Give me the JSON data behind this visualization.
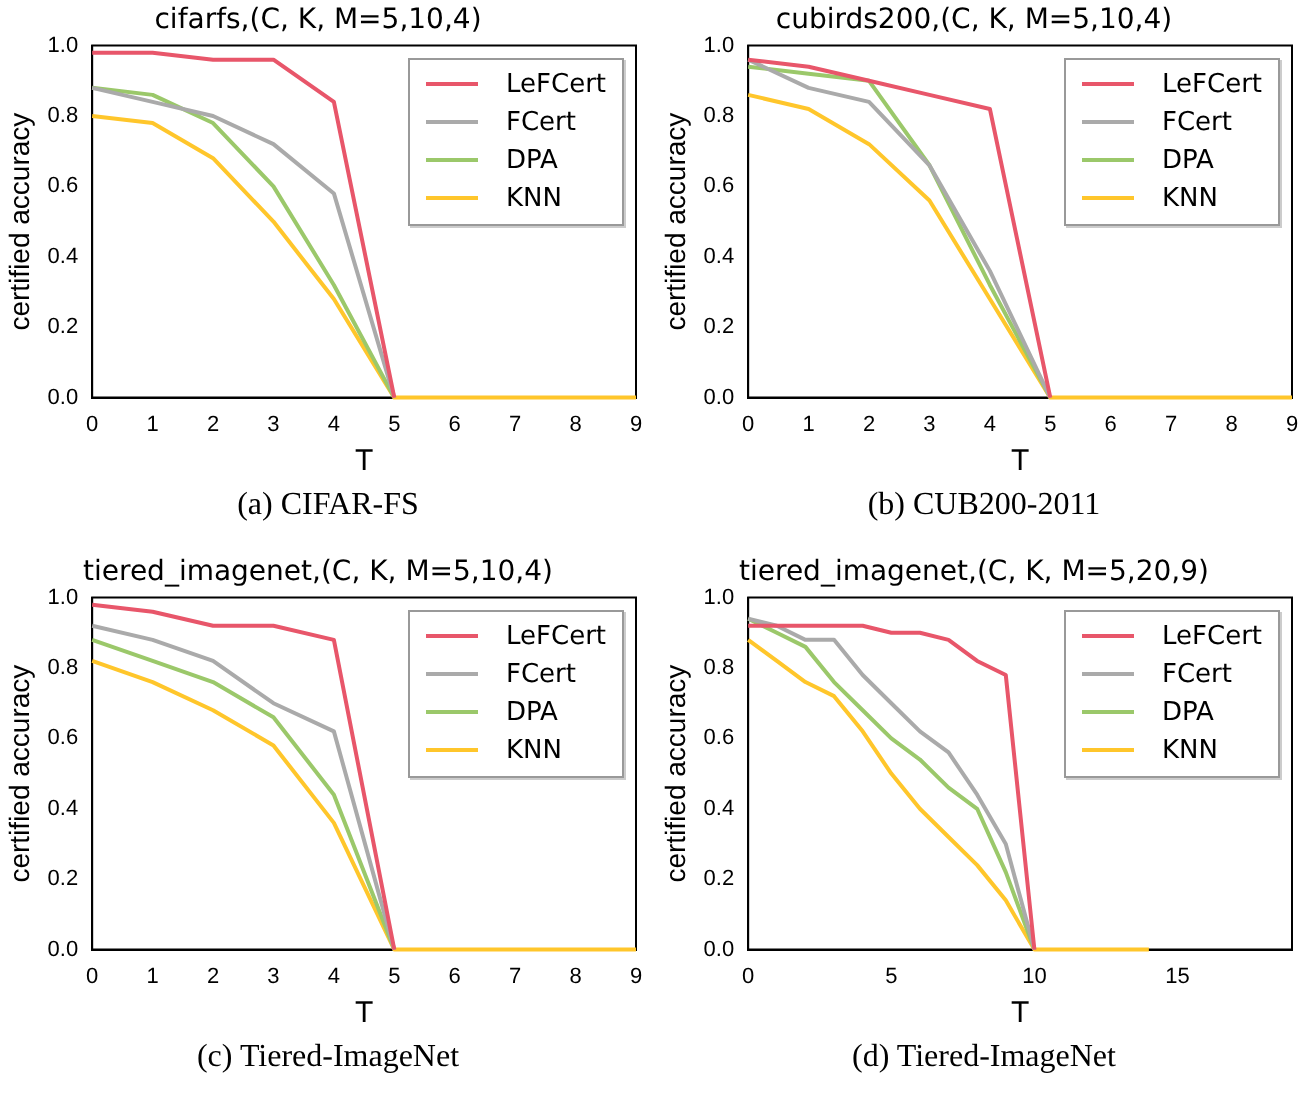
{
  "chart_data": [
    {
      "type": "line",
      "title": "cifarfs,(C, K, M=5,10,4)",
      "xlabel": "T",
      "ylabel": "certified accuracy",
      "annotations": [
        "(a)  CIFAR-FS"
      ],
      "legend": "top right",
      "x": [
        0,
        1,
        2,
        3,
        4,
        5,
        6,
        7,
        8,
        9
      ],
      "xlim": [
        0,
        9
      ],
      "xticks": [
        0,
        1,
        2,
        3,
        4,
        5,
        6,
        7,
        8,
        9
      ],
      "ylim": [
        0,
        1
      ],
      "yticks": [
        {
          "value": 0,
          "label": "0.0"
        },
        {
          "value": 0.2,
          "label": "0.2"
        },
        {
          "value": 0.4,
          "label": "0.4"
        },
        {
          "value": 0.6,
          "label": "0.6"
        },
        {
          "value": 0.8,
          "label": "0.8"
        },
        {
          "value": 1,
          "label": "1.0"
        }
      ],
      "series": [
        {
          "name": "LeFCert",
          "color": "#e8566a",
          "values": [
            0.98,
            0.98,
            0.96,
            0.96,
            0.84,
            0,
            null,
            null,
            null,
            null
          ]
        },
        {
          "name": "FCert",
          "color": "#aaaaaa",
          "values": [
            0.88,
            0.84,
            0.8,
            0.72,
            0.58,
            0,
            null,
            null,
            null,
            null
          ]
        },
        {
          "name": "DPA",
          "color": "#9bc86a",
          "values": [
            0.88,
            0.86,
            0.78,
            0.6,
            0.32,
            0,
            null,
            null,
            null,
            null
          ]
        },
        {
          "name": "KNN",
          "color": "#ffc62b",
          "values": [
            0.8,
            0.78,
            0.68,
            0.5,
            0.28,
            0,
            0,
            0,
            0,
            0
          ]
        }
      ]
    },
    {
      "type": "line",
      "title": "cubirds200,(C, K, M=5,10,4)",
      "xlabel": "T",
      "ylabel": "certified accuracy",
      "annotations": [
        "(b)  CUB200-2011"
      ],
      "legend": "top right",
      "x": [
        0,
        1,
        2,
        3,
        4,
        5,
        6,
        7,
        8,
        9
      ],
      "xlim": [
        0,
        9
      ],
      "xticks": [
        0,
        1,
        2,
        3,
        4,
        5,
        6,
        7,
        8,
        9
      ],
      "ylim": [
        0,
        1
      ],
      "yticks": [
        {
          "value": 0,
          "label": "0.0"
        },
        {
          "value": 0.2,
          "label": "0.2"
        },
        {
          "value": 0.4,
          "label": "0.4"
        },
        {
          "value": 0.6,
          "label": "0.6"
        },
        {
          "value": 0.8,
          "label": "0.8"
        },
        {
          "value": 1,
          "label": "1.0"
        }
      ],
      "series": [
        {
          "name": "LeFCert",
          "color": "#e8566a",
          "values": [
            0.96,
            0.94,
            0.9,
            0.86,
            0.82,
            0,
            null,
            null,
            null,
            null
          ]
        },
        {
          "name": "FCert",
          "color": "#aaaaaa",
          "values": [
            0.96,
            0.88,
            0.84,
            0.66,
            0.36,
            0,
            null,
            null,
            null,
            null
          ]
        },
        {
          "name": "DPA",
          "color": "#9bc86a",
          "values": [
            0.94,
            0.92,
            0.9,
            0.66,
            0.32,
            0,
            null,
            null,
            null,
            null
          ]
        },
        {
          "name": "KNN",
          "color": "#ffc62b",
          "values": [
            0.86,
            0.82,
            0.72,
            0.56,
            0.28,
            0,
            0,
            0,
            0,
            0
          ]
        }
      ]
    },
    {
      "type": "line",
      "title": "tiered_imagenet,(C, K, M=5,10,4)",
      "xlabel": "T",
      "ylabel": "certified accuracy",
      "annotations": [
        "(c)  Tiered-ImageNet"
      ],
      "legend": "top right",
      "x": [
        0,
        1,
        2,
        3,
        4,
        5,
        6,
        7,
        8,
        9
      ],
      "xlim": [
        0,
        9
      ],
      "xticks": [
        0,
        1,
        2,
        3,
        4,
        5,
        6,
        7,
        8,
        9
      ],
      "ylim": [
        0,
        1
      ],
      "yticks": [
        {
          "value": 0,
          "label": "0.0"
        },
        {
          "value": 0.2,
          "label": "0.2"
        },
        {
          "value": 0.4,
          "label": "0.4"
        },
        {
          "value": 0.6,
          "label": "0.6"
        },
        {
          "value": 0.8,
          "label": "0.8"
        },
        {
          "value": 1,
          "label": "1.0"
        }
      ],
      "series": [
        {
          "name": "LeFCert",
          "color": "#e8566a",
          "values": [
            0.98,
            0.96,
            0.92,
            0.92,
            0.88,
            0,
            null,
            null,
            null,
            null
          ]
        },
        {
          "name": "FCert",
          "color": "#aaaaaa",
          "values": [
            0.92,
            0.88,
            0.82,
            0.7,
            0.62,
            0,
            null,
            null,
            null,
            null
          ]
        },
        {
          "name": "DPA",
          "color": "#9bc86a",
          "values": [
            0.88,
            0.82,
            0.76,
            0.66,
            0.44,
            0,
            null,
            null,
            null,
            null
          ]
        },
        {
          "name": "KNN",
          "color": "#ffc62b",
          "values": [
            0.82,
            0.76,
            0.68,
            0.58,
            0.36,
            0,
            0,
            0,
            0,
            0
          ]
        }
      ]
    },
    {
      "type": "line",
      "title": "tiered_imagenet,(C, K, M=5,20,9)",
      "xlabel": "T",
      "ylabel": "certified accuracy",
      "annotations": [
        "(d)  Tiered-ImageNet"
      ],
      "legend": "top right",
      "x": [
        0,
        1,
        2,
        3,
        4,
        5,
        6,
        7,
        8,
        9,
        10,
        11,
        12,
        13,
        14
      ],
      "xlim": [
        0,
        19
      ],
      "xticks": [
        0,
        5,
        10,
        15
      ],
      "ylim": [
        0,
        1
      ],
      "yticks": [
        {
          "value": 0,
          "label": "0.0"
        },
        {
          "value": 0.2,
          "label": "0.2"
        },
        {
          "value": 0.4,
          "label": "0.4"
        },
        {
          "value": 0.6,
          "label": "0.6"
        },
        {
          "value": 0.8,
          "label": "0.8"
        },
        {
          "value": 1,
          "label": "1.0"
        }
      ],
      "series": [
        {
          "name": "LeFCert",
          "color": "#e8566a",
          "values": [
            0.92,
            0.92,
            0.92,
            0.92,
            0.92,
            0.9,
            0.9,
            0.88,
            0.82,
            0.78,
            0,
            null,
            null,
            null,
            null
          ]
        },
        {
          "name": "FCert",
          "color": "#aaaaaa",
          "values": [
            0.94,
            0.92,
            0.88,
            0.88,
            0.78,
            0.7,
            0.62,
            0.56,
            0.44,
            0.3,
            0,
            null,
            null,
            null,
            null
          ]
        },
        {
          "name": "DPA",
          "color": "#9bc86a",
          "values": [
            0.94,
            0.9,
            0.86,
            0.76,
            0.68,
            0.6,
            0.54,
            0.46,
            0.4,
            0.22,
            0,
            null,
            null,
            null,
            null
          ]
        },
        {
          "name": "KNN",
          "color": "#ffc62b",
          "values": [
            0.88,
            0.82,
            0.76,
            0.72,
            0.62,
            0.5,
            0.4,
            0.32,
            0.24,
            0.14,
            0,
            0,
            0,
            0,
            0
          ]
        }
      ]
    }
  ]
}
